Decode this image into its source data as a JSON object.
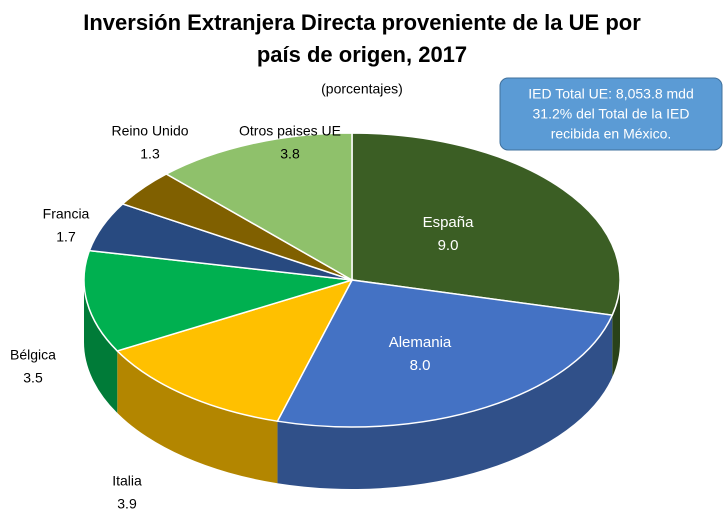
{
  "chart_data": {
    "type": "pie3d",
    "title": [
      "Inversión Extranjera Directa proveniente de la UE por",
      "país de origen, 2017"
    ],
    "subtitle": "(porcentajes)",
    "annotation": [
      "IED Total UE: 8,053.8 mdd",
      "31.2% del Total de la IED",
      "recibida en México."
    ],
    "categories": [
      "España",
      "Alemania",
      "Italia",
      "Bélgica",
      "Francia",
      "Reino Unido",
      "Otros paises UE"
    ],
    "values": [
      9.0,
      8.0,
      3.9,
      3.5,
      1.7,
      1.3,
      3.8
    ],
    "value_labels": [
      "9.0",
      "8.0",
      "3.9",
      "3.5",
      "1.7",
      "1.3",
      "3.8"
    ],
    "colors": [
      "#3b5e24",
      "#4472c4",
      "#ffc000",
      "#00b050",
      "#284a80",
      "#806000",
      "#8fc16b"
    ]
  }
}
